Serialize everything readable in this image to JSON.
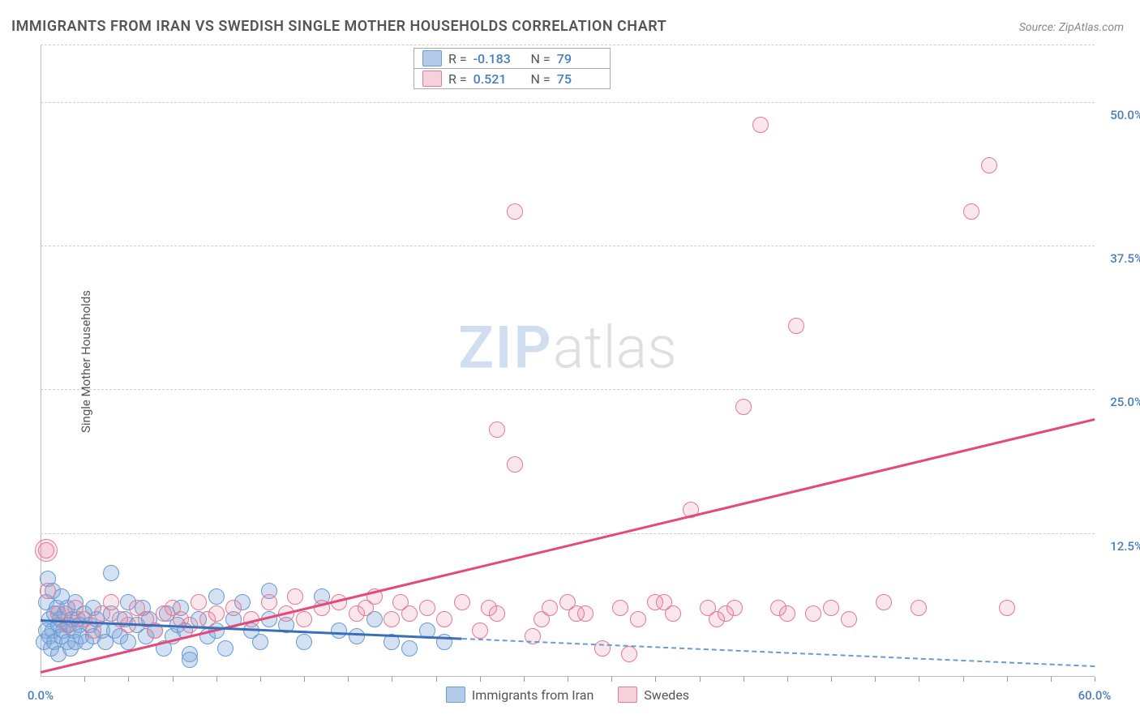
{
  "title": "IMMIGRANTS FROM IRAN VS SWEDISH SINGLE MOTHER HOUSEHOLDS CORRELATION CHART",
  "source": "Source: ZipAtlas.com",
  "ylabel": "Single Mother Households",
  "watermark": {
    "zip": "ZIP",
    "atlas": "atlas"
  },
  "chart": {
    "type": "scatter",
    "xlim": [
      0,
      60
    ],
    "ylim": [
      0,
      55
    ],
    "x_axis_percent": true,
    "y_axis_percent": true,
    "yticks": [
      12.5,
      25.0,
      37.5,
      50.0
    ],
    "ytick_labels": [
      "12.5%",
      "25.0%",
      "37.5%",
      "50.0%"
    ],
    "xticks_minor_count": 24,
    "x_labels": [
      {
        "val": 0,
        "text": "0.0%"
      },
      {
        "val": 60,
        "text": "60.0%"
      }
    ],
    "background_color": "#ffffff",
    "grid_color": "#cccccc",
    "axis_color": "#bbbbbb",
    "label_color": "#4a7ebb",
    "title_color": "#555555",
    "title_fontsize": 18,
    "label_fontsize": 15,
    "point_radius": 9,
    "series": [
      {
        "name": "Immigrants from Iran",
        "color_fill": "rgba(130,170,220,0.35)",
        "color_stroke": "#6a9bd1",
        "class": "blue",
        "regression": {
          "x1": 0,
          "y1": 5.0,
          "x2": 24,
          "y2": 3.4,
          "solid_until_x": 24,
          "dash_to_x": 60,
          "dash_y2": 1.0,
          "color": "#3a6fb7"
        },
        "points": [
          [
            0.2,
            3.0
          ],
          [
            0.3,
            6.5
          ],
          [
            0.3,
            4.0
          ],
          [
            0.4,
            8.5
          ],
          [
            0.5,
            5.0
          ],
          [
            0.5,
            3.5
          ],
          [
            0.6,
            2.5
          ],
          [
            0.7,
            7.5
          ],
          [
            0.7,
            4.0
          ],
          [
            0.8,
            5.5
          ],
          [
            0.8,
            3.0
          ],
          [
            0.9,
            6.0
          ],
          [
            1.0,
            4.5
          ],
          [
            1.0,
            2.0
          ],
          [
            1.1,
            5.0
          ],
          [
            1.2,
            7.0
          ],
          [
            1.2,
            3.5
          ],
          [
            1.3,
            4.0
          ],
          [
            1.4,
            5.5
          ],
          [
            1.5,
            3.0
          ],
          [
            1.5,
            6.0
          ],
          [
            1.6,
            4.5
          ],
          [
            1.7,
            2.5
          ],
          [
            1.8,
            5.0
          ],
          [
            1.9,
            4.0
          ],
          [
            2.0,
            6.5
          ],
          [
            2.0,
            3.0
          ],
          [
            2.1,
            5.0
          ],
          [
            2.2,
            4.5
          ],
          [
            2.3,
            3.5
          ],
          [
            2.5,
            5.5
          ],
          [
            2.6,
            3.0
          ],
          [
            2.8,
            4.5
          ],
          [
            3.0,
            6.0
          ],
          [
            3.0,
            3.5
          ],
          [
            3.2,
            5.0
          ],
          [
            3.5,
            4.0
          ],
          [
            3.7,
            3.0
          ],
          [
            4.0,
            5.5
          ],
          [
            4.0,
            9.0
          ],
          [
            4.2,
            4.0
          ],
          [
            4.5,
            3.5
          ],
          [
            4.8,
            5.0
          ],
          [
            5.0,
            6.5
          ],
          [
            5.0,
            3.0
          ],
          [
            5.5,
            4.5
          ],
          [
            5.8,
            6.0
          ],
          [
            6.0,
            3.5
          ],
          [
            6.2,
            5.0
          ],
          [
            6.5,
            4.0
          ],
          [
            7.0,
            2.5
          ],
          [
            7.2,
            5.5
          ],
          [
            7.5,
            3.5
          ],
          [
            7.8,
            4.5
          ],
          [
            8.0,
            6.0
          ],
          [
            8.2,
            4.0
          ],
          [
            8.5,
            2.0
          ],
          [
            8.5,
            1.5
          ],
          [
            9.0,
            5.0
          ],
          [
            9.5,
            3.5
          ],
          [
            10.0,
            7.0
          ],
          [
            10.0,
            4.0
          ],
          [
            10.5,
            2.5
          ],
          [
            11.0,
            5.0
          ],
          [
            11.5,
            6.5
          ],
          [
            12.0,
            4.0
          ],
          [
            12.5,
            3.0
          ],
          [
            13.0,
            5.0
          ],
          [
            13.0,
            7.5
          ],
          [
            14.0,
            4.5
          ],
          [
            15.0,
            3.0
          ],
          [
            16.0,
            7.0
          ],
          [
            17.0,
            4.0
          ],
          [
            18.0,
            3.5
          ],
          [
            19.0,
            5.0
          ],
          [
            20.0,
            3.0
          ],
          [
            21.0,
            2.5
          ],
          [
            22.0,
            4.0
          ],
          [
            23.0,
            3.0
          ]
        ]
      },
      {
        "name": "Swedes",
        "color_fill": "rgba(230,120,150,0.18)",
        "color_stroke": "#e67896",
        "class": "pink",
        "regression": {
          "x1": 0,
          "y1": 0.5,
          "x2": 60,
          "y2": 22.5,
          "color": "#e6487a"
        },
        "points": [
          [
            0.3,
            11.0
          ],
          [
            0.4,
            7.5
          ],
          [
            1.0,
            5.5
          ],
          [
            1.5,
            4.5
          ],
          [
            2.0,
            6.0
          ],
          [
            2.5,
            5.0
          ],
          [
            3.0,
            4.0
          ],
          [
            3.5,
            5.5
          ],
          [
            4.0,
            6.5
          ],
          [
            4.5,
            5.0
          ],
          [
            5.0,
            4.5
          ],
          [
            5.5,
            6.0
          ],
          [
            6.0,
            5.0
          ],
          [
            6.5,
            4.0
          ],
          [
            7.0,
            5.5
          ],
          [
            7.5,
            6.0
          ],
          [
            8.0,
            5.0
          ],
          [
            8.5,
            4.5
          ],
          [
            9.0,
            6.5
          ],
          [
            9.5,
            5.0
          ],
          [
            10.0,
            5.5
          ],
          [
            11.0,
            6.0
          ],
          [
            12.0,
            5.0
          ],
          [
            13.0,
            6.5
          ],
          [
            14.0,
            5.5
          ],
          [
            14.5,
            7.0
          ],
          [
            15.0,
            5.0
          ],
          [
            16.0,
            6.0
          ],
          [
            17.0,
            6.5
          ],
          [
            18.0,
            5.5
          ],
          [
            18.5,
            6.0
          ],
          [
            19.0,
            7.0
          ],
          [
            20.0,
            5.0
          ],
          [
            20.5,
            6.5
          ],
          [
            21.0,
            5.5
          ],
          [
            22.0,
            6.0
          ],
          [
            23.0,
            5.0
          ],
          [
            24.0,
            6.5
          ],
          [
            25.0,
            4.0
          ],
          [
            26.0,
            5.5
          ],
          [
            26.0,
            21.5
          ],
          [
            27.0,
            18.5
          ],
          [
            27.0,
            40.5
          ],
          [
            28.0,
            3.5
          ],
          [
            29.0,
            6.0
          ],
          [
            30.0,
            6.5
          ],
          [
            31.0,
            5.5
          ],
          [
            32.0,
            2.5
          ],
          [
            33.0,
            6.0
          ],
          [
            34.0,
            5.0
          ],
          [
            35.0,
            6.5
          ],
          [
            36.0,
            5.5
          ],
          [
            37.0,
            14.5
          ],
          [
            38.0,
            6.0
          ],
          [
            39.0,
            5.5
          ],
          [
            40.0,
            23.5
          ],
          [
            41.0,
            48.0
          ],
          [
            42.0,
            6.0
          ],
          [
            43.0,
            30.5
          ],
          [
            44.0,
            5.5
          ],
          [
            45.0,
            6.0
          ],
          [
            46.0,
            5.0
          ],
          [
            48.0,
            6.5
          ],
          [
            50.0,
            6.0
          ],
          [
            53.0,
            40.5
          ],
          [
            54.0,
            44.5
          ],
          [
            55.0,
            6.0
          ],
          [
            38.5,
            5.0
          ],
          [
            33.5,
            2.0
          ],
          [
            30.5,
            5.5
          ],
          [
            35.5,
            6.5
          ],
          [
            39.5,
            6.0
          ],
          [
            42.5,
            5.5
          ],
          [
            25.5,
            6.0
          ],
          [
            28.5,
            5.0
          ]
        ]
      }
    ]
  },
  "legend_stats": [
    {
      "swatch": "blue",
      "r": "-0.183",
      "n": "79"
    },
    {
      "swatch": "pink",
      "r": "0.521",
      "n": "75"
    }
  ],
  "bottom_legend": [
    {
      "swatch": "blue",
      "label": "Immigrants from Iran"
    },
    {
      "swatch": "pink",
      "label": "Swedes"
    }
  ]
}
